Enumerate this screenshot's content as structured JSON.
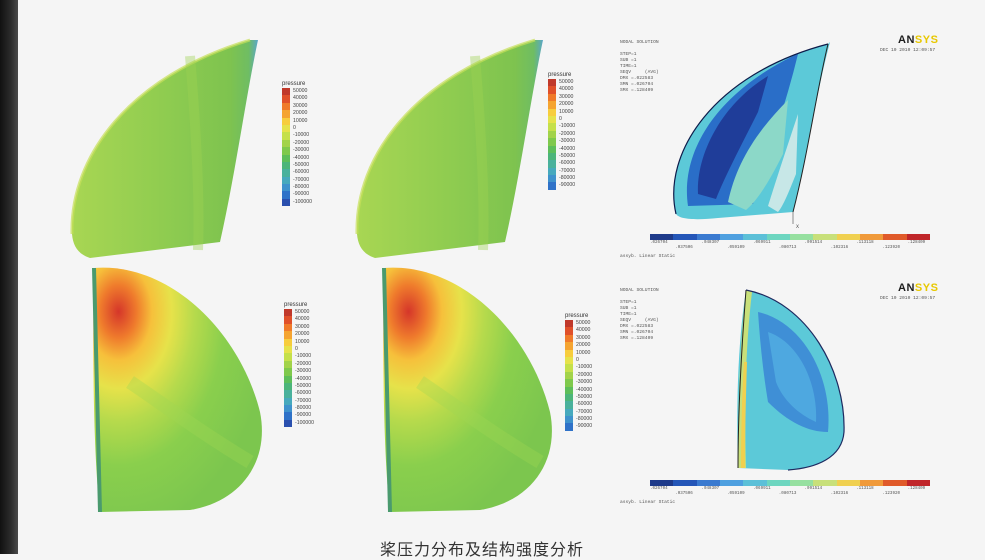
{
  "pressure_legend": {
    "title": "pressure",
    "colors": [
      "#c0392b",
      "#e0502a",
      "#f07a2a",
      "#f5a431",
      "#f7cd3d",
      "#e6e24a",
      "#c5e04a",
      "#a2d34a",
      "#7fc94c",
      "#5dbe5a",
      "#4cb57a",
      "#49b19c",
      "#46a9bd",
      "#3e92cc",
      "#2f72c8",
      "#2a4fae"
    ]
  },
  "legends": [
    {
      "labels": [
        "50000",
        "40000",
        "30000",
        "20000",
        "10000",
        "0",
        "-10000",
        "-20000",
        "-30000",
        "-40000",
        "-50000",
        "-60000",
        "-70000",
        "-80000",
        "-90000",
        "-100000"
      ]
    },
    {
      "labels": [
        "50000",
        "40000",
        "30000",
        "20000",
        "10000",
        "0",
        "-10000",
        "-20000",
        "-30000",
        "-40000",
        "-50000",
        "-60000",
        "-70000",
        "-80000",
        "-90000"
      ]
    },
    {
      "labels": [
        "50000",
        "40000",
        "30000",
        "20000",
        "10000",
        "0",
        "-10000",
        "-20000",
        "-30000",
        "-40000",
        "-50000",
        "-60000",
        "-70000",
        "-80000",
        "-90000",
        "-100000"
      ]
    },
    {
      "labels": [
        "50000",
        "40000",
        "30000",
        "20000",
        "10000",
        "0",
        "-10000",
        "-20000",
        "-30000",
        "-40000",
        "-50000",
        "-60000",
        "-70000",
        "-80000",
        "-90000"
      ]
    }
  ],
  "ansys_top": {
    "logo_main": "AN",
    "logo_accent": "SYS",
    "header_lines": [
      "NODAL SOLUTION",
      "",
      "STEP=1",
      "SUB =1",
      "TIME=1",
      "SEQV     (AVG)",
      "DMX =.022583",
      "SMN =.026704",
      "SMX =.128409"
    ],
    "date_lines": [
      "DEC 10 2010",
      "12:09:57"
    ],
    "colorbar": [
      "#1e3a8a",
      "#2456b8",
      "#3a7ad0",
      "#4fa0e0",
      "#5cc0d8",
      "#6dd6c0",
      "#96e0a0",
      "#c8e07a",
      "#f0d050",
      "#f09a3a",
      "#e05a2a",
      "#c0262a"
    ],
    "tick_labels_top": [
      ".026704",
      ".048307",
      ".069911",
      ".091514",
      ".113118",
      ".128409"
    ],
    "tick_labels_bottom": [
      ".037506",
      ".059109",
      ".080713",
      ".102316",
      ".123920"
    ],
    "footer": "assyb. Linear Static"
  },
  "ansys_bottom": {
    "logo_main": "AN",
    "logo_accent": "SYS",
    "header_lines": [
      "NODAL SOLUTION",
      "",
      "STEP=1",
      "SUB =1",
      "TIME=1",
      "SEQV     (AVG)",
      "DMX =.022583",
      "SMN =.026704",
      "SMX =.128409"
    ],
    "date_lines": [
      "DEC 10 2010",
      "12:09:57"
    ],
    "colorbar": [
      "#1e3a8a",
      "#2456b8",
      "#3a7ad0",
      "#4fa0e0",
      "#5cc0d8",
      "#6dd6c0",
      "#96e0a0",
      "#c8e07a",
      "#f0d050",
      "#f09a3a",
      "#e05a2a",
      "#c0262a"
    ],
    "tick_labels_top": [
      ".026704",
      ".048307",
      ".069911",
      ".091514",
      ".113118",
      ".128409"
    ],
    "tick_labels_bottom": [
      ".037506",
      ".059109",
      ".080713",
      ".102316",
      ".123920"
    ],
    "footer": "assyb. Linear Static"
  },
  "caption": "桨压力分布及结构强度分析"
}
